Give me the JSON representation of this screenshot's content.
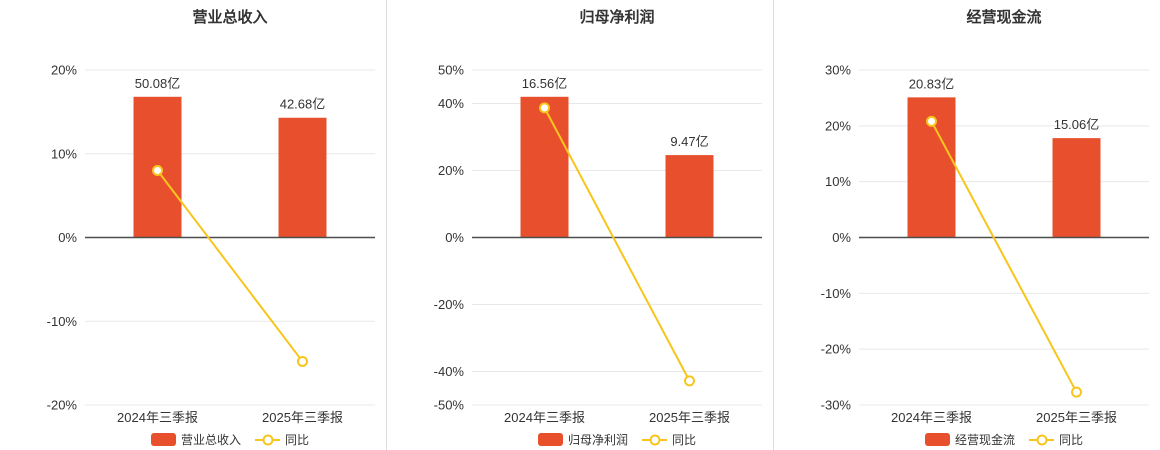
{
  "colors": {
    "bar": "#e8502d",
    "line": "#f8c51c",
    "axis": "#4d4d4d",
    "grid": "#e8e8e8",
    "text": "#333333",
    "separator": "#dddddd",
    "background": "#ffffff",
    "marker_fill": "#ffffff"
  },
  "chart_data": [
    {
      "type": "bar+line",
      "title": "营业总收入",
      "categories": [
        "2024年三季报",
        "2025年三季报"
      ],
      "bar_series": {
        "name": "营业总收入",
        "unit": "亿",
        "values": [
          50.08,
          42.68
        ],
        "labels": [
          "50.08亿",
          "42.68亿"
        ],
        "display_top_pct": [
          16.8,
          14.3
        ]
      },
      "line_series": {
        "name": "同比",
        "values_pct": [
          8.0,
          -14.8
        ]
      },
      "ylim": [
        -20,
        20
      ],
      "yticks": [
        20,
        10,
        0,
        -10,
        -20
      ],
      "grid": true,
      "legend_position": "bottom"
    },
    {
      "type": "bar+line",
      "title": "归母净利润",
      "categories": [
        "2024年三季报",
        "2025年三季报"
      ],
      "bar_series": {
        "name": "归母净利润",
        "unit": "亿",
        "values": [
          16.56,
          9.47
        ],
        "labels": [
          "16.56亿",
          "9.47亿"
        ],
        "display_top_pct": [
          42.0,
          24.6
        ]
      },
      "line_series": {
        "name": "同比",
        "values_pct": [
          38.7,
          -42.8
        ]
      },
      "ylim": [
        -50,
        50
      ],
      "yticks": [
        50,
        40,
        20,
        0,
        -20,
        -40,
        -50
      ],
      "grid": true,
      "legend_position": "bottom"
    },
    {
      "type": "bar+line",
      "title": "经营现金流",
      "categories": [
        "2024年三季报",
        "2025年三季报"
      ],
      "bar_series": {
        "name": "经营现金流",
        "unit": "亿",
        "values": [
          20.83,
          15.06
        ],
        "labels": [
          "20.83亿",
          "15.06亿"
        ],
        "display_top_pct": [
          25.1,
          17.8
        ]
      },
      "line_series": {
        "name": "同比",
        "values_pct": [
          20.8,
          -27.7
        ]
      },
      "ylim": [
        -30,
        30
      ],
      "yticks": [
        30,
        20,
        10,
        0,
        -10,
        -20,
        -30
      ],
      "grid": true,
      "legend_position": "bottom"
    }
  ]
}
